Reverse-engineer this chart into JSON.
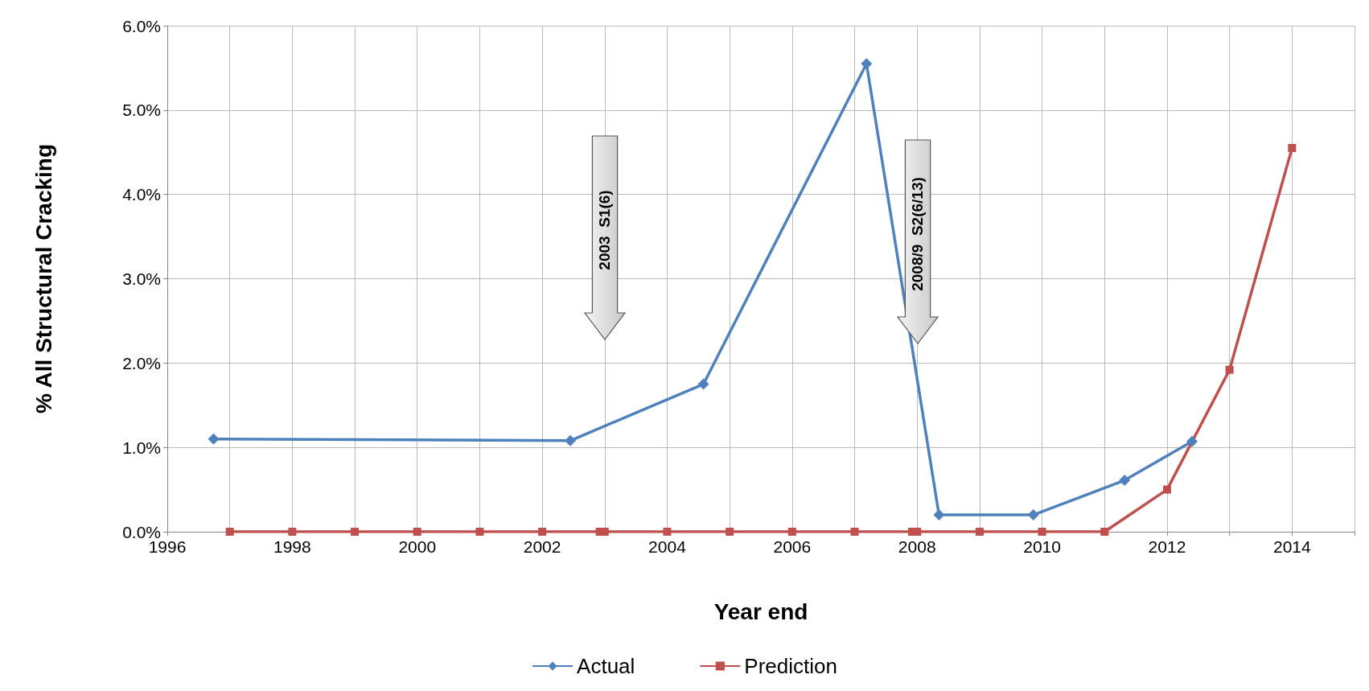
{
  "chart_data": {
    "type": "line",
    "xlabel": "Year end",
    "ylabel": "% All Structural Cracking",
    "xlim": [
      1996,
      2015
    ],
    "ylim": [
      0,
      6
    ],
    "xticks": [
      1996,
      {
        "value": 1997,
        "label": null
      },
      1998,
      {
        "value": 1999,
        "label": null
      },
      2000,
      {
        "value": 2001,
        "label": null
      },
      2002,
      {
        "value": 2003,
        "label": null
      },
      2004,
      {
        "value": 2005,
        "label": null
      },
      2006,
      {
        "value": 2007,
        "label": null
      },
      2008,
      {
        "value": 2009,
        "label": null
      },
      2010,
      {
        "value": 2011,
        "label": null
      },
      2012,
      {
        "value": 2013,
        "label": null
      },
      2014,
      {
        "value": 2015,
        "label": null
      }
    ],
    "yticks": [
      {
        "value": 0,
        "label": "0.0%"
      },
      {
        "value": 1,
        "label": "1.0%"
      },
      {
        "value": 2,
        "label": "2.0%"
      },
      {
        "value": 3,
        "label": "3.0%"
      },
      {
        "value": 4,
        "label": "4.0%"
      },
      {
        "value": 5,
        "label": "5.0%"
      },
      {
        "value": 6,
        "label": "6.0%"
      }
    ],
    "grid": true,
    "legend": "bottom",
    "line_style": "solid",
    "series": [
      {
        "name": "Actual",
        "color": "#4f81bd",
        "marker": "diamond",
        "x": [
          1996.74,
          2002.45,
          2004.58,
          2007.19,
          2008.35,
          2009.86,
          2011.32,
          2012.4
        ],
        "values": [
          1.1,
          1.08,
          1.75,
          5.55,
          0.2,
          0.2,
          0.61,
          1.07
        ]
      },
      {
        "name": "Prediction",
        "color": "#c0504d",
        "marker": "square",
        "x": [
          1997,
          1998,
          1999,
          2000,
          2001,
          2002,
          2002.92,
          2003,
          2004,
          2005,
          2006,
          2007,
          2007.92,
          2008,
          2009,
          2010,
          2011,
          2012,
          2013,
          2014
        ],
        "values": [
          0,
          0,
          0,
          0,
          0,
          0,
          0,
          0,
          0,
          0,
          0,
          0,
          0,
          0,
          0,
          0,
          0,
          0.5,
          1.92,
          4.55
        ]
      }
    ],
    "annotations": [
      "2003  S1(6)",
      "2008/9  S2(6/13)"
    ]
  }
}
